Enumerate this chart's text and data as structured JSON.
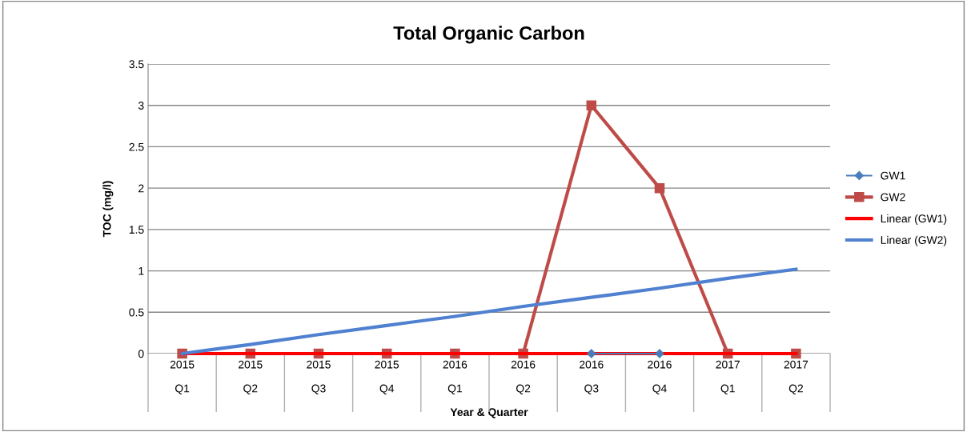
{
  "chart_data": {
    "type": "line",
    "title": "Total Organic Carbon",
    "xlabel": "Year & Quarter",
    "ylabel": "TOC (mg/l)",
    "categories": [
      "2015\nQ1",
      "2015\nQ2",
      "2015\nQ3",
      "2015\nQ4",
      "2016\nQ1",
      "2016\nQ2",
      "2016\nQ3",
      "2016\nQ4",
      "2017\nQ1",
      "2017\nQ2"
    ],
    "series": [
      {
        "name": "GW1",
        "color": "#4a7ebb",
        "marker": "diamond",
        "values": [
          null,
          null,
          null,
          null,
          null,
          null,
          0,
          0,
          null,
          null
        ]
      },
      {
        "name": "GW2",
        "color": "#be4b48",
        "marker": "square",
        "values": [
          0,
          0,
          0,
          0,
          0,
          0,
          3,
          2,
          0,
          0
        ]
      },
      {
        "name": "Linear (GW1)",
        "color": "#ff0000",
        "marker": "none",
        "values": [
          0,
          0,
          0,
          0,
          0,
          0,
          0,
          0,
          0,
          0
        ]
      },
      {
        "name": "Linear (GW2)",
        "color": "#4f81d0",
        "marker": "none",
        "values": [
          0,
          0.11,
          0.23,
          0.34,
          0.45,
          0.57,
          0.68,
          0.79,
          0.91,
          1.02
        ]
      }
    ],
    "ylim": [
      0,
      3.5
    ],
    "yticks": [
      0,
      0.5,
      1,
      1.5,
      2,
      2.5,
      3,
      3.5
    ],
    "grid": "y",
    "legend": "right"
  }
}
